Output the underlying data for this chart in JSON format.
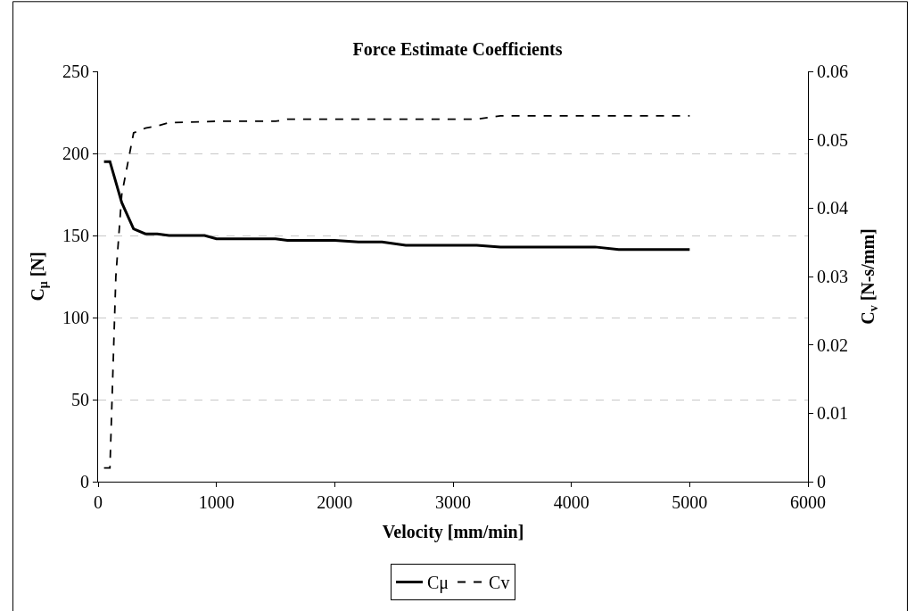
{
  "chart_data": {
    "type": "line",
    "title": "Force Estimate Coefficients",
    "xlabel": "Velocity [mm/min]",
    "ylabel": "C$_{μ}$ [N]",
    "y2label": "C$_{v}$ [N-s/mm]",
    "xlim": [
      0,
      6000
    ],
    "xticks": [
      0,
      1000,
      2000,
      3000,
      4000,
      5000,
      6000
    ],
    "ylim": [
      0,
      250
    ],
    "yticks": [
      0,
      50,
      100,
      150,
      200,
      250
    ],
    "y2lim": [
      0,
      0.06
    ],
    "y2ticks": [
      0,
      0.01,
      0.02,
      0.03,
      0.04,
      0.05,
      0.06
    ],
    "grid": "y",
    "legend": "bottom",
    "series": [
      {
        "name": "Cμ",
        "color": "#000000",
        "line_style": "solid",
        "x": [
          50,
          100,
          200,
          300,
          400,
          500,
          600,
          900,
          1000,
          1500,
          1600,
          2000,
          2200,
          2400,
          2600,
          3200,
          3400,
          4200,
          4400,
          5000
        ],
        "values": [
          195,
          195,
          170,
          154,
          151,
          151,
          150,
          150,
          148,
          148,
          147,
          147,
          146,
          146,
          144,
          144,
          143,
          143,
          141.5,
          141.5
        ]
      },
      {
        "name": "Cv",
        "color": "#000000",
        "line_style": "dashed",
        "axis": "y2",
        "x": [
          50,
          100,
          150,
          200,
          300,
          400,
          500,
          600,
          1000,
          1500,
          1600,
          3200,
          3400,
          5000
        ],
        "values": [
          0.002,
          0.002,
          0.03,
          0.042,
          0.051,
          0.0517,
          0.052,
          0.0525,
          0.0527,
          0.0527,
          0.053,
          0.053,
          0.0535,
          0.0535
        ]
      }
    ]
  }
}
